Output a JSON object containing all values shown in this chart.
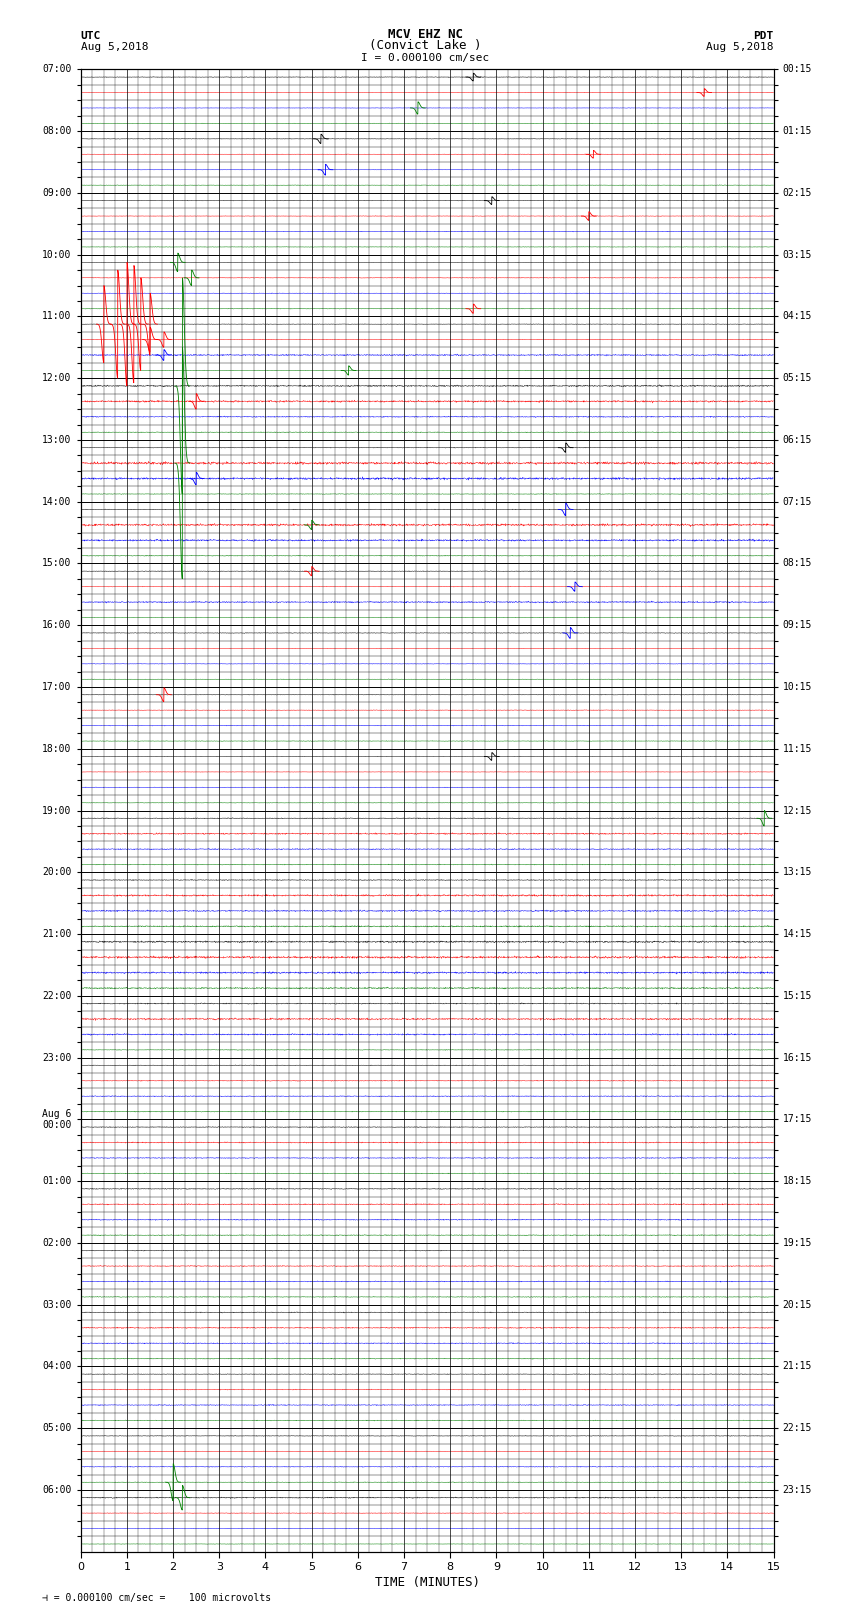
{
  "title_line1": "MCV EHZ NC",
  "title_line2": "(Convict Lake )",
  "title_line3": "I = 0.000100 cm/sec",
  "left_header_line1": "UTC",
  "left_header_line2": "Aug 5,2018",
  "right_header_line1": "PDT",
  "right_header_line2": "Aug 5,2018",
  "xlabel": "TIME (MINUTES)",
  "footer": "= 0.000100 cm/sec =    100 microvolts",
  "xlim": [
    0,
    15
  ],
  "xticks": [
    0,
    1,
    2,
    3,
    4,
    5,
    6,
    7,
    8,
    9,
    10,
    11,
    12,
    13,
    14,
    15
  ],
  "num_rows": 96,
  "rows_per_hour": 4,
  "background_color": "#ffffff",
  "left_ytick_labels": [
    "07:00",
    "",
    "",
    "",
    "08:00",
    "",
    "",
    "",
    "09:00",
    "",
    "",
    "",
    "10:00",
    "",
    "",
    "",
    "11:00",
    "",
    "",
    "",
    "12:00",
    "",
    "",
    "",
    "13:00",
    "",
    "",
    "",
    "14:00",
    "",
    "",
    "",
    "15:00",
    "",
    "",
    "",
    "16:00",
    "",
    "",
    "",
    "17:00",
    "",
    "",
    "",
    "18:00",
    "",
    "",
    "",
    "19:00",
    "",
    "",
    "",
    "20:00",
    "",
    "",
    "",
    "21:00",
    "",
    "",
    "",
    "22:00",
    "",
    "",
    "",
    "23:00",
    "",
    "",
    "",
    "Aug 6\n00:00",
    "",
    "",
    "",
    "01:00",
    "",
    "",
    "",
    "02:00",
    "",
    "",
    "",
    "03:00",
    "",
    "",
    "",
    "04:00",
    "",
    "",
    "",
    "05:00",
    "",
    "",
    "",
    "06:00",
    "",
    "",
    ""
  ],
  "right_ytick_labels": [
    "00:15",
    "",
    "",
    "",
    "01:15",
    "",
    "",
    "",
    "02:15",
    "",
    "",
    "",
    "03:15",
    "",
    "",
    "",
    "04:15",
    "",
    "",
    "",
    "05:15",
    "",
    "",
    "",
    "06:15",
    "",
    "",
    "",
    "07:15",
    "",
    "",
    "",
    "08:15",
    "",
    "",
    "",
    "09:15",
    "",
    "",
    "",
    "10:15",
    "",
    "",
    "",
    "11:15",
    "",
    "",
    "",
    "12:15",
    "",
    "",
    "",
    "13:15",
    "",
    "",
    "",
    "14:15",
    "",
    "",
    "",
    "15:15",
    "",
    "",
    "",
    "16:15",
    "",
    "",
    "",
    "17:15",
    "",
    "",
    "",
    "18:15",
    "",
    "",
    "",
    "19:15",
    "",
    "",
    "",
    "20:15",
    "",
    "",
    "",
    "21:15",
    "",
    "",
    "",
    "22:15",
    "",
    "",
    "",
    "23:15",
    "",
    "",
    ""
  ],
  "noise_seed": 42,
  "noise_base": 0.012,
  "row_colors": [
    0,
    1,
    2,
    3,
    0,
    1,
    2,
    3,
    0,
    1,
    2,
    3,
    0,
    1,
    2,
    3,
    0,
    1,
    2,
    3,
    0,
    1,
    2,
    3,
    0,
    1,
    2,
    3,
    0,
    1,
    2,
    3,
    0,
    1,
    2,
    3,
    0,
    1,
    2,
    3,
    0,
    1,
    2,
    3,
    0,
    1,
    2,
    3,
    0,
    1,
    2,
    3,
    0,
    1,
    2,
    3,
    0,
    1,
    2,
    3,
    0,
    1,
    2,
    3,
    0,
    1,
    2,
    3,
    0,
    1,
    2,
    3,
    0,
    1,
    2,
    3,
    0,
    1,
    2,
    3,
    0,
    1,
    2,
    3,
    0,
    1,
    2,
    3,
    0,
    1,
    2,
    3,
    0,
    1,
    2,
    3
  ],
  "color_map": [
    "black",
    "red",
    "blue",
    "green"
  ],
  "noise_levels": [
    0.008,
    0.006,
    0.005,
    0.007,
    0.006,
    0.007,
    0.005,
    0.006,
    0.007,
    0.006,
    0.008,
    0.006,
    0.005,
    0.007,
    0.007,
    0.008,
    0.006,
    0.007,
    0.02,
    0.007,
    0.02,
    0.025,
    0.015,
    0.01,
    0.008,
    0.035,
    0.03,
    0.008,
    0.008,
    0.03,
    0.025,
    0.01,
    0.008,
    0.007,
    0.02,
    0.006,
    0.008,
    0.005,
    0.006,
    0.006,
    0.007,
    0.007,
    0.008,
    0.007,
    0.006,
    0.005,
    0.007,
    0.006,
    0.01,
    0.02,
    0.015,
    0.01,
    0.012,
    0.025,
    0.02,
    0.018,
    0.025,
    0.03,
    0.025,
    0.02,
    0.015,
    0.025,
    0.02,
    0.008,
    0.008,
    0.01,
    0.012,
    0.01,
    0.01,
    0.015,
    0.012,
    0.01,
    0.012,
    0.015,
    0.013,
    0.012,
    0.01,
    0.013,
    0.012,
    0.01,
    0.012,
    0.015,
    0.013,
    0.01,
    0.008,
    0.01,
    0.012,
    0.01,
    0.008,
    0.006,
    0.01,
    0.008,
    0.015,
    0.008,
    0.006,
    0.005
  ]
}
